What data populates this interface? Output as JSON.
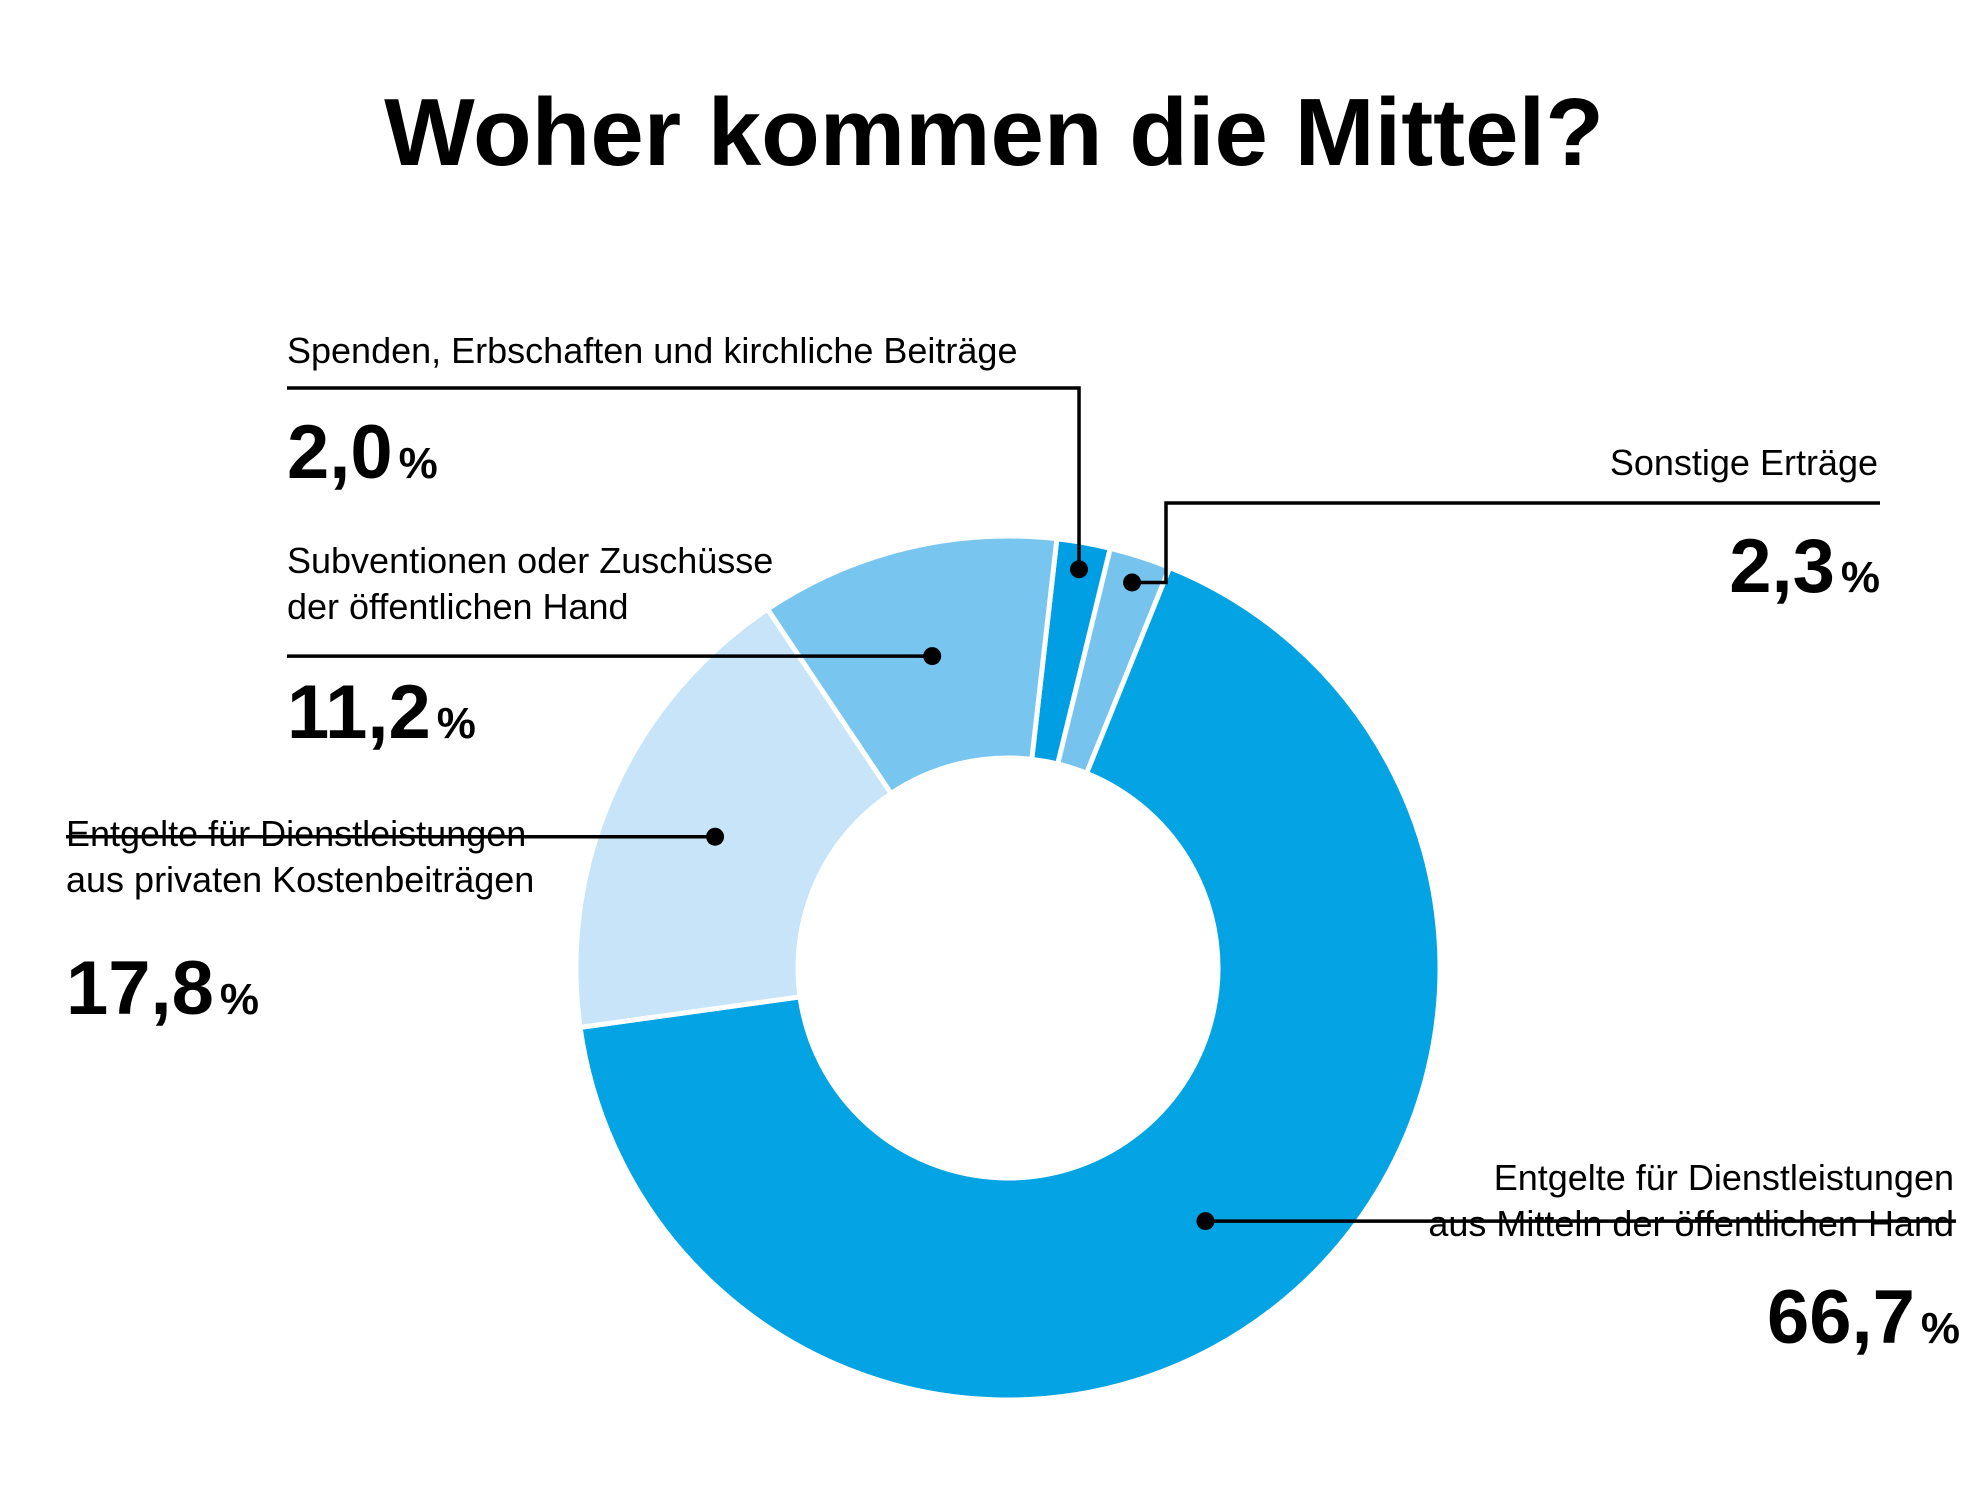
{
  "chart_data": {
    "type": "pie",
    "title": "Woher kommen die Mittel?",
    "slices": [
      {
        "label_lines": [
          "Spenden, Erbschaften und kirchliche Beiträge"
        ],
        "number": "2,0",
        "unit": "%",
        "value": 2.0,
        "color": "#009fe3"
      },
      {
        "label_lines": [
          "Sonstige Erträge"
        ],
        "number": "2,3",
        "unit": "%",
        "value": 2.3,
        "color": "#76c4ee"
      },
      {
        "label_lines": [
          "Entgelte für Dienstleistungen",
          "aus Mitteln der öffentlichen Hand"
        ],
        "number": "66,7",
        "unit": "%",
        "value": 66.7,
        "color": "#04a3e3"
      },
      {
        "label_lines": [
          "Entgelte für Dienstleistungen",
          "aus privaten Kostenbeiträgen"
        ],
        "number": "17,8",
        "unit": "%",
        "value": 17.8,
        "color": "#c7e4f8"
      },
      {
        "label_lines": [
          "Subventionen oder Zuschüsse",
          "der öffentlichen Hand"
        ],
        "number": "11,2",
        "unit": "%",
        "value": 11.2,
        "color": "#78c5ef"
      }
    ]
  }
}
